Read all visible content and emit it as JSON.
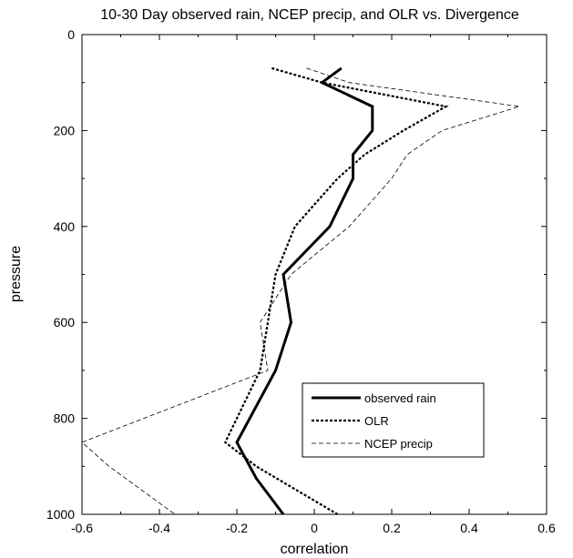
{
  "chart_data": {
    "type": "line",
    "title": "10-30 Day observed rain, NCEP precip, and OLR vs. Divergence",
    "xlabel": "correlation",
    "ylabel": "pressure",
    "xlim": [
      -0.6,
      0.6
    ],
    "ylim": [
      0,
      1000
    ],
    "y_inverted": true,
    "xticks": [
      -0.6,
      -0.4,
      -0.2,
      0,
      0.2,
      0.4,
      0.6
    ],
    "xtick_labels": [
      "-0.6",
      "-0.4",
      "-0.2",
      "0",
      "0.2",
      "0.4",
      "0.6"
    ],
    "yticks": [
      0,
      200,
      400,
      600,
      800,
      1000
    ],
    "ytick_labels": [
      "0",
      "200",
      "400",
      "600",
      "800",
      "1000"
    ],
    "grid": false,
    "legend_position": "lower-right",
    "series": [
      {
        "name": "observed rain",
        "style": "solid-thick",
        "color": "#000000",
        "points": [
          [
            0.07,
            70
          ],
          [
            0.02,
            100
          ],
          [
            0.15,
            150
          ],
          [
            0.15,
            200
          ],
          [
            0.1,
            250
          ],
          [
            0.1,
            300
          ],
          [
            0.04,
            400
          ],
          [
            -0.08,
            500
          ],
          [
            -0.06,
            600
          ],
          [
            -0.1,
            700
          ],
          [
            -0.2,
            850
          ],
          [
            -0.15,
            925
          ],
          [
            -0.08,
            1000
          ]
        ]
      },
      {
        "name": "OLR",
        "style": "dotted-medium",
        "color": "#000000",
        "points": [
          [
            -0.11,
            70
          ],
          [
            0.02,
            100
          ],
          [
            0.34,
            150
          ],
          [
            0.23,
            200
          ],
          [
            0.13,
            250
          ],
          [
            0.06,
            300
          ],
          [
            -0.05,
            400
          ],
          [
            -0.1,
            500
          ],
          [
            -0.12,
            600
          ],
          [
            -0.14,
            700
          ],
          [
            -0.23,
            850
          ],
          [
            -0.15,
            900
          ],
          [
            0.06,
            1000
          ]
        ]
      },
      {
        "name": "NCEP precip",
        "style": "dashed-thin",
        "color": "#000000",
        "points": [
          [
            -0.02,
            70
          ],
          [
            0.09,
            100
          ],
          [
            0.53,
            150
          ],
          [
            0.33,
            200
          ],
          [
            0.24,
            250
          ],
          [
            0.2,
            300
          ],
          [
            0.09,
            400
          ],
          [
            -0.06,
            500
          ],
          [
            -0.14,
            600
          ],
          [
            -0.12,
            700
          ],
          [
            -0.6,
            850
          ],
          [
            -0.53,
            900
          ],
          [
            -0.36,
            1000
          ]
        ]
      }
    ]
  }
}
